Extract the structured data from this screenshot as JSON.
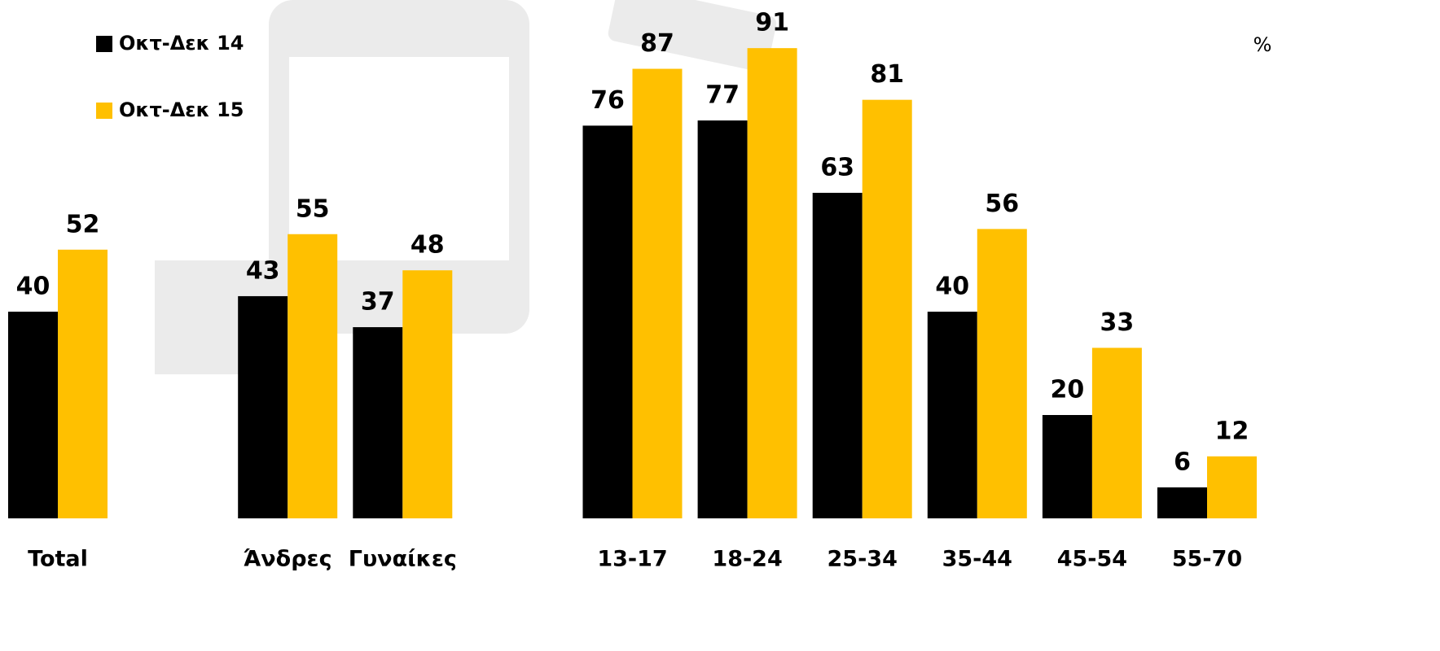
{
  "chart_data": {
    "type": "bar",
    "unit": "%",
    "categories": [
      "Total",
      "Άνδρες",
      "Γυναίκες",
      "13-17",
      "18-24",
      "25-34",
      "35-44",
      "45-54",
      "55-70"
    ],
    "series": [
      {
        "name": "Οκτ-Δεκ 14",
        "color": "#000000",
        "values": [
          40,
          43,
          37,
          76,
          77,
          63,
          40,
          20,
          6
        ]
      },
      {
        "name": "Οκτ-Δεκ 15",
        "color": "#ffc000",
        "values": [
          52,
          55,
          48,
          87,
          91,
          81,
          56,
          33,
          12
        ]
      }
    ]
  }
}
